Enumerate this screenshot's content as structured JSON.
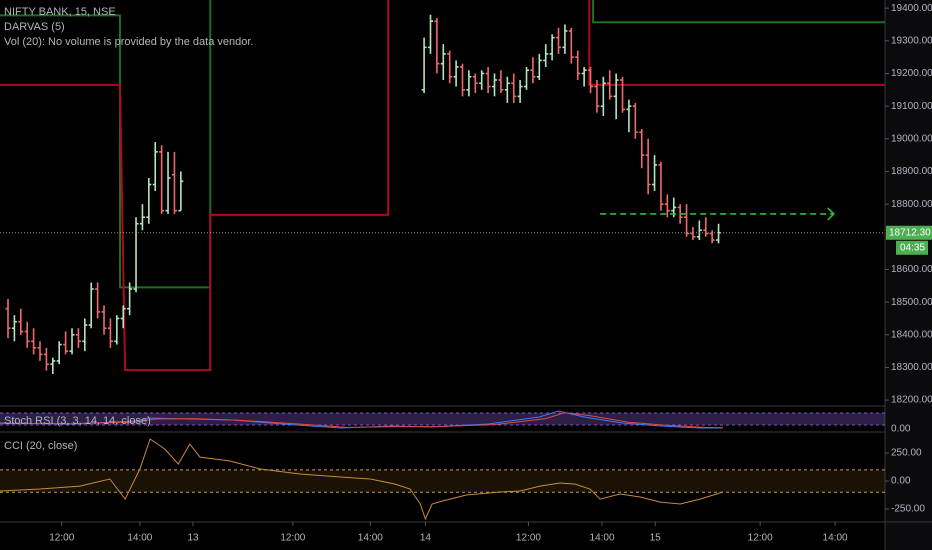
{
  "chart_data": {
    "type": "ohlc",
    "title": "NIFTY BANK, 15, NSE",
    "legend_lines": [
      "DARVAS (5)",
      "Vol (20): No volume is provided by the data vendor."
    ],
    "up_color": "#b7e4c0",
    "down_color": "#ef6b6b",
    "xlim": [
      -1.25,
      137
    ],
    "ylim": [
      18185,
      19425
    ],
    "yticks": [
      {
        "value": 18200,
        "label": "18200.00"
      },
      {
        "value": 18300,
        "label": "18300.00"
      },
      {
        "value": 18400,
        "label": "18400.00"
      },
      {
        "value": 18500,
        "label": "18500.00"
      },
      {
        "value": 18600,
        "label": "18600.00"
      },
      {
        "value": 18700,
        "label": "18700.00"
      },
      {
        "value": 18800,
        "label": "18800.00"
      },
      {
        "value": 18900,
        "label": "18900.00"
      },
      {
        "value": 19000,
        "label": "19000.00"
      },
      {
        "value": 19100,
        "label": "19100.00"
      },
      {
        "value": 19200,
        "label": "19200.00"
      },
      {
        "value": 19300,
        "label": "19300.00"
      },
      {
        "value": 19400,
        "label": "19400.00"
      }
    ],
    "xticks": [
      {
        "value": 8.4,
        "label": "12:00"
      },
      {
        "value": 20.6,
        "label": "14:00"
      },
      {
        "value": 28.9,
        "label": "13"
      },
      {
        "value": 44.5,
        "label": "12:00"
      },
      {
        "value": 56.6,
        "label": "14:00"
      },
      {
        "value": 65.2,
        "label": "14"
      },
      {
        "value": 81.3,
        "label": "12:00"
      },
      {
        "value": 92.8,
        "label": "14:00"
      },
      {
        "value": 101.1,
        "label": "15"
      },
      {
        "value": 117.5,
        "label": "12:00"
      },
      {
        "value": 129.2,
        "label": "14:00"
      }
    ],
    "x": [
      0,
      1,
      2,
      3,
      4,
      5,
      6,
      7,
      8,
      9,
      10,
      11,
      12,
      13,
      14,
      15,
      16,
      17,
      18,
      19,
      20,
      21,
      22,
      23,
      24,
      25,
      26,
      27,
      65,
      66,
      67,
      68,
      69,
      70,
      71,
      72,
      73,
      74,
      75,
      76,
      77,
      78,
      79,
      80,
      81,
      82,
      83,
      84,
      85,
      86,
      87,
      88,
      89,
      90,
      91,
      92,
      93,
      94,
      95,
      96,
      97,
      98,
      99,
      100,
      101,
      102,
      103,
      104,
      105,
      106,
      107,
      108,
      109,
      110,
      111
    ],
    "open": [
      18480,
      18420,
      18440,
      18410,
      18380,
      18360,
      18340,
      18310,
      18320,
      18370,
      18350,
      18400,
      18380,
      18430,
      18540,
      18470,
      18420,
      18380,
      18450,
      18480,
      18540,
      18740,
      18760,
      18860,
      18960,
      18780,
      18890,
      18780,
      19150,
      19280,
      19360,
      19230,
      19260,
      19190,
      19220,
      19150,
      19190,
      19170,
      19200,
      19160,
      19180,
      19150,
      19170,
      19130,
      19160,
      19210,
      19190,
      19240,
      19260,
      19310,
      19280,
      19330,
      19250,
      19200,
      19210,
      19160,
      19100,
      19170,
      19130,
      19180,
      19090,
      19100,
      19020,
      18950,
      18860,
      18920,
      18800,
      18780,
      18790,
      18760,
      18710,
      18700,
      18720,
      18710,
      18690
    ],
    "high": [
      18510,
      18460,
      18480,
      18440,
      18420,
      18380,
      18360,
      18330,
      18380,
      18410,
      18420,
      18420,
      18450,
      18560,
      18560,
      18490,
      18450,
      18460,
      18490,
      18560,
      18760,
      18800,
      18880,
      18990,
      18980,
      18960,
      18960,
      18900,
      19310,
      19380,
      19370,
      19290,
      19270,
      19240,
      19230,
      19210,
      19200,
      19210,
      19220,
      19200,
      19210,
      19190,
      19200,
      19180,
      19220,
      19250,
      19260,
      19290,
      19320,
      19340,
      19350,
      19340,
      19270,
      19220,
      19220,
      19180,
      19190,
      19210,
      19200,
      19190,
      19120,
      19110,
      19030,
      19000,
      18950,
      18930,
      18830,
      18820,
      18800,
      18800,
      18730,
      18750,
      18760,
      18720,
      18740
    ],
    "low": [
      18390,
      18380,
      18400,
      18360,
      18340,
      18320,
      18290,
      18280,
      18310,
      18340,
      18340,
      18360,
      18350,
      18420,
      18450,
      18400,
      18360,
      18370,
      18420,
      18460,
      18530,
      18720,
      18740,
      18840,
      18770,
      18770,
      18770,
      18780,
      19140,
      19260,
      19200,
      19180,
      19170,
      19160,
      19130,
      19130,
      19140,
      19150,
      19140,
      19130,
      19140,
      19110,
      19110,
      19110,
      19150,
      19170,
      19180,
      19220,
      19240,
      19260,
      19260,
      19230,
      19180,
      19160,
      19140,
      19080,
      19070,
      19120,
      19060,
      19080,
      19020,
      19000,
      18910,
      18830,
      18840,
      18780,
      18760,
      18760,
      18740,
      18700,
      18690,
      18690,
      18700,
      18680,
      18680
    ],
    "close": [
      18420,
      18440,
      18410,
      18380,
      18360,
      18340,
      18310,
      18320,
      18370,
      18350,
      18400,
      18380,
      18430,
      18540,
      18470,
      18420,
      18380,
      18450,
      18480,
      18540,
      18740,
      18760,
      18860,
      18960,
      18780,
      18880,
      18780,
      18870,
      19280,
      19360,
      19230,
      19260,
      19190,
      19220,
      19150,
      19190,
      19170,
      19200,
      19160,
      19180,
      19150,
      19170,
      19130,
      19160,
      19210,
      19190,
      19240,
      19260,
      19310,
      19280,
      19330,
      19250,
      19200,
      19210,
      19160,
      19100,
      19170,
      19130,
      19180,
      19090,
      19100,
      19020,
      18950,
      18860,
      18920,
      18800,
      18780,
      18790,
      18760,
      18710,
      18700,
      18720,
      18710,
      18690,
      18712.3
    ],
    "darvas": [
      {
        "color": "#1f6e24",
        "x": [
          -1.25,
          17.5,
          17.5,
          31.6,
          31.6,
          31.6,
          91.4,
          91.4,
          137
        ],
        "values": [
          19378,
          19378,
          18545,
          18545,
          19500,
          null,
          19500,
          19357,
          19357
        ]
      },
      {
        "color": "#b0081f",
        "x": [
          -1.25,
          17.5,
          18.3,
          31.6,
          31.6,
          59.4,
          59.4,
          59.4,
          90.8,
          90.8,
          137
        ],
        "values": [
          19165,
          19165,
          18292,
          18292,
          18767,
          18767,
          19500,
          null,
          19500,
          19165,
          19165
        ]
      }
    ],
    "target_line": {
      "value": 18770,
      "x": [
        92.5,
        129
      ],
      "color": "#2fbf3a"
    },
    "last_price": {
      "value": 18712.3,
      "label": "18712.30",
      "countdown": "04:35",
      "color": "#4caf50"
    },
    "stoch_rsi": {
      "title": "Stoch RSI (3, 3, 14, 14, close)",
      "ylim": [
        0,
        100
      ],
      "yticks": [
        {
          "value": 0,
          "label": "0.00"
        }
      ],
      "band": [
        20,
        80
      ],
      "series": [
        {
          "color": "#3d7bf0",
          "x": [
            -1.25,
            10,
            20,
            22,
            28,
            35,
            45,
            52,
            60,
            66,
            75,
            83,
            86,
            90,
            96,
            102,
            108,
            111.7
          ],
          "values": [
            30,
            25,
            40,
            55,
            50,
            45,
            20,
            5,
            15,
            10,
            25,
            60,
            90,
            60,
            30,
            15,
            5,
            5
          ]
        },
        {
          "color": "#e0454f",
          "x": [
            -1.25,
            10,
            20,
            23,
            29,
            36,
            46,
            53,
            61,
            67,
            76,
            84,
            87,
            91,
            97,
            103,
            109,
            111.7
          ],
          "values": [
            28,
            27,
            35,
            50,
            52,
            44,
            24,
            8,
            12,
            12,
            22,
            52,
            82,
            66,
            34,
            18,
            8,
            6
          ]
        }
      ]
    },
    "cci": {
      "title": "CCI (20, close)",
      "ylim": [
        -348,
        411
      ],
      "band": [
        -100,
        100
      ],
      "color": "#c98a3c",
      "yticks": [
        {
          "value": 250,
          "label": "250.00"
        },
        {
          "value": 0,
          "label": "0.00"
        },
        {
          "value": -250,
          "label": "-250.00"
        }
      ],
      "x": [
        -1.25,
        5,
        11.25,
        15.9,
        18.3,
        20.6,
        22.2,
        24.5,
        26.6,
        28.4,
        30,
        34.7,
        39.4,
        45.6,
        51.9,
        56.6,
        60.5,
        62.8,
        64.4,
        65.2,
        66.25,
        67.8,
        71.6,
        76.9,
        80,
        83.1,
        86.25,
        88.6,
        90.9,
        92.5,
        95.6,
        98.75,
        101.9,
        105,
        108.1,
        111.7
      ],
      "values": [
        -89,
        -71,
        -45,
        18,
        -161,
        107,
        375,
        286,
        152,
        330,
        214,
        179,
        107,
        63,
        36,
        18,
        -27,
        -71,
        -205,
        -339,
        -205,
        -179,
        -125,
        -98,
        -89,
        -45,
        -18,
        -27,
        -71,
        -161,
        -116,
        -143,
        -188,
        -205,
        -161,
        -98
      ]
    }
  }
}
